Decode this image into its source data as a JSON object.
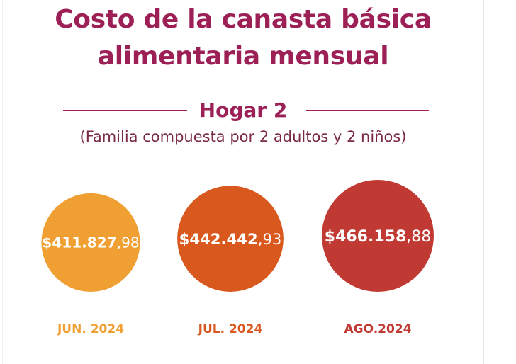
{
  "title": {
    "line1": "Costo de la canasta básica",
    "line2": "alimentaria mensual"
  },
  "subtitle": {
    "heading": "Hogar 2",
    "note": "(Familia compuesta por 2 adultos y 2 niños)"
  },
  "colors": {
    "title": "#9c1f55",
    "jun": "#f0a032",
    "jul": "#d9581e",
    "ago": "#c03a33"
  },
  "chart_data": {
    "type": "bubble",
    "categories": [
      "JUN. 2024",
      "JUL. 2024",
      "AGO.2024"
    ],
    "values": [
      411827.98,
      442442.93,
      466158.88
    ],
    "value_labels": [
      {
        "integer": "$411.827",
        "decimal": ",98"
      },
      {
        "integer": "$442.442",
        "decimal": ",93"
      },
      {
        "integer": "$466.158",
        "decimal": ",88"
      }
    ],
    "colors": [
      "#f0a032",
      "#d9581e",
      "#c03a33"
    ]
  }
}
